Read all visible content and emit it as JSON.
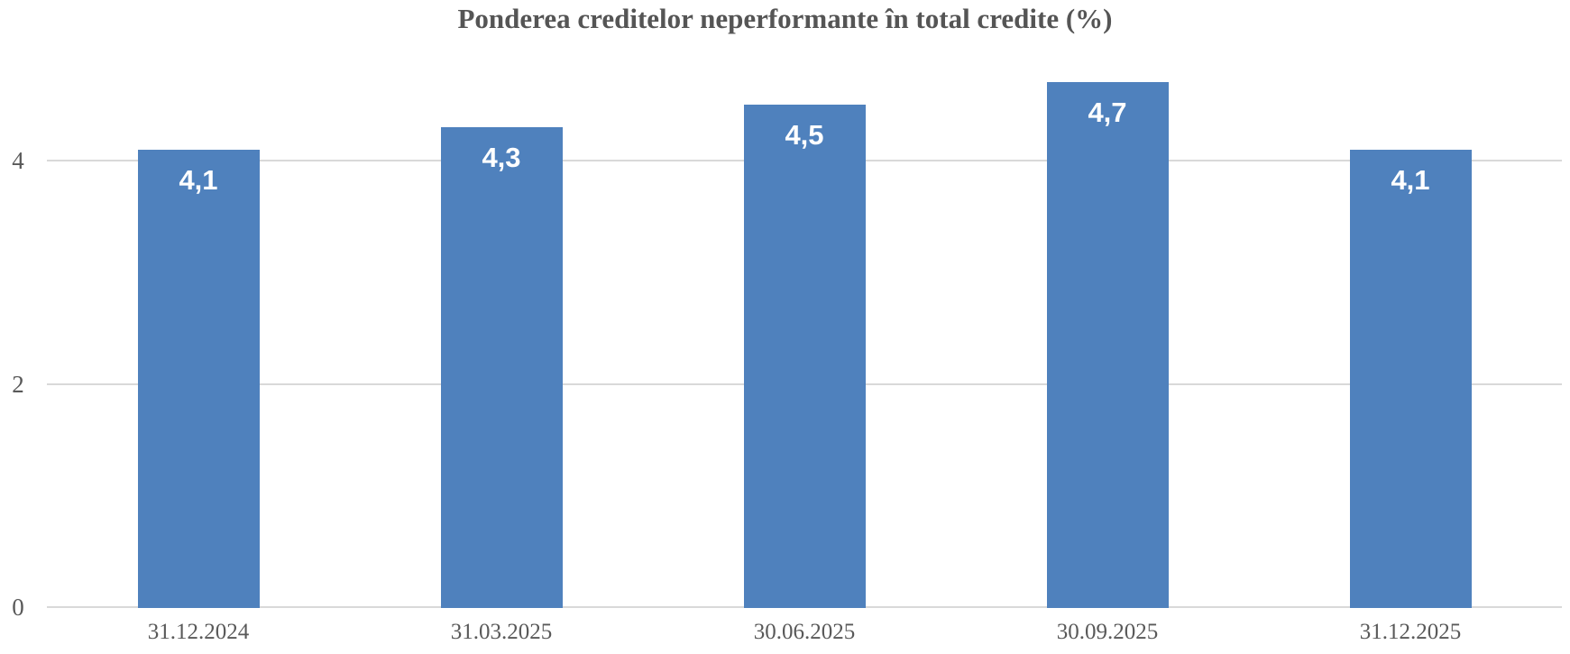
{
  "chart_data": {
    "type": "bar",
    "title": "Ponderea creditelor neperformante în total credite (%)",
    "categories": [
      "31.12.2024",
      "31.03.2025",
      "30.06.2025",
      "30.09.2025",
      "31.12.2025"
    ],
    "values": [
      4.1,
      4.3,
      4.5,
      4.7,
      4.1
    ],
    "value_labels": [
      "4,1",
      "4,3",
      "4,5",
      "4,7",
      "4,1"
    ],
    "yticks": [
      0,
      2,
      4
    ],
    "ylim": [
      0,
      5
    ],
    "xlabel": "",
    "ylabel": "",
    "grid": true,
    "legend_position": "none",
    "bar_color": "#4f81bd",
    "value_label_color": "#ffffff",
    "axis_text_color": "#595959",
    "title_color": "#555555",
    "gridline_color": "#d9d9d9"
  }
}
